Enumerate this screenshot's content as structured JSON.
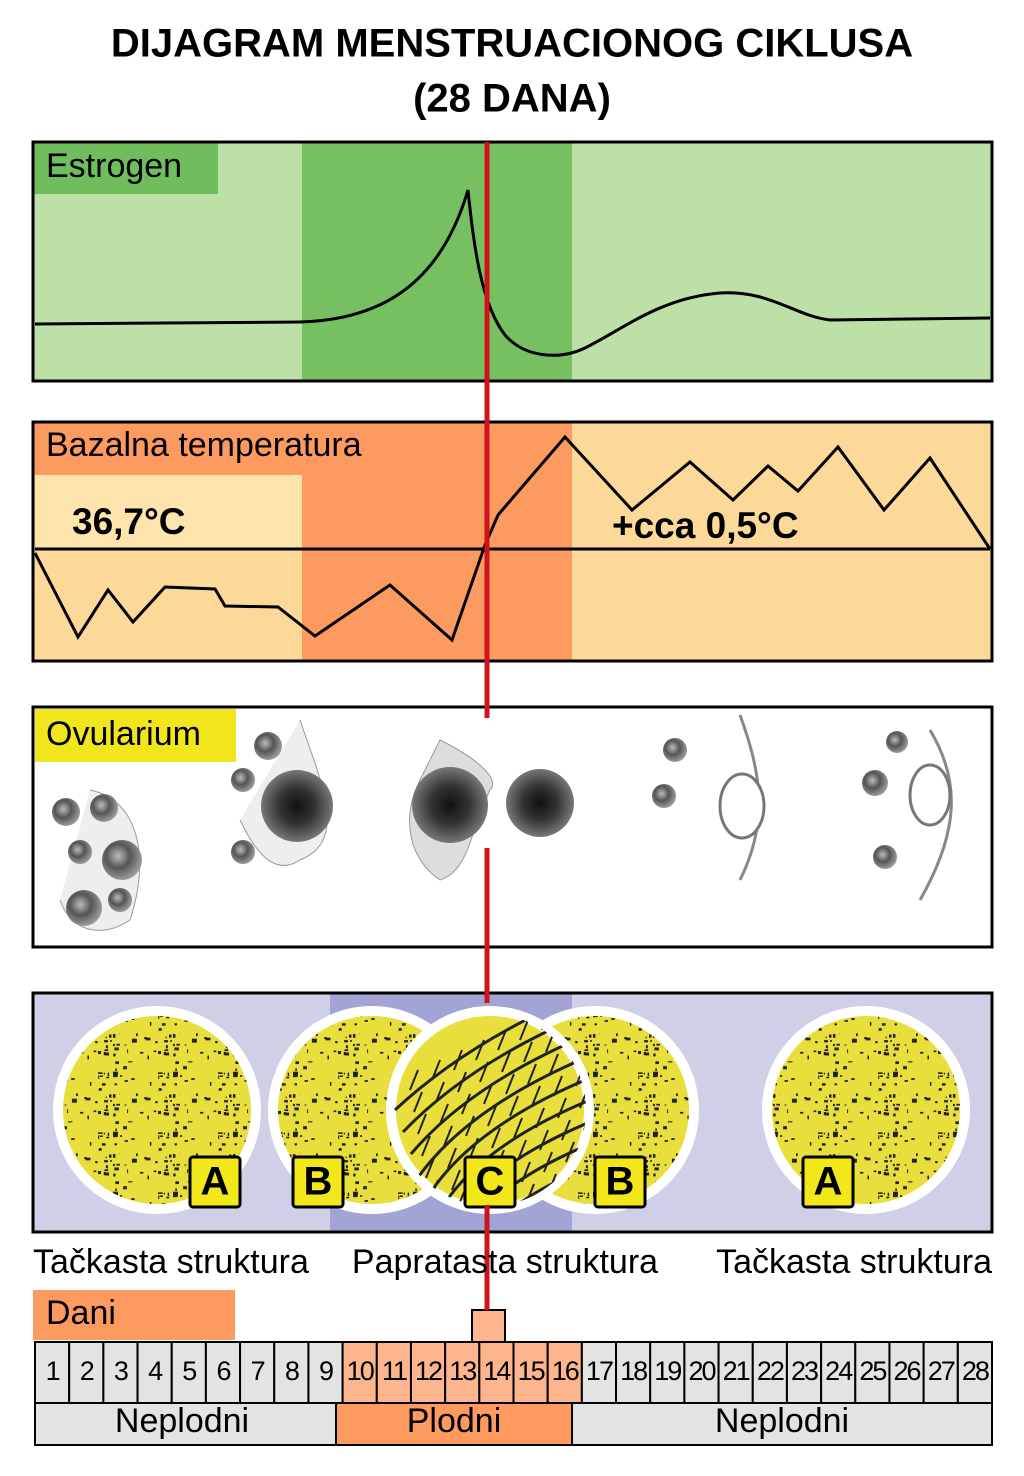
{
  "title": [
    "DIJAGRAM MENSTRUACIONOG CIKLUSA",
    "(28 DANA)"
  ],
  "panels": {
    "estrogen": {
      "label": "Estrogen"
    },
    "temperature": {
      "label": "Bazalna temperatura",
      "base": "36,7°C",
      "rise": "+cca 0,5°C"
    },
    "ovularium": {
      "label": "Ovularium"
    },
    "mucus": {
      "letters": [
        "A",
        "B",
        "C",
        "B",
        "A"
      ],
      "structures": [
        "Tačkasta struktura",
        "Papratasta struktura",
        "Tačkasta struktura"
      ]
    }
  },
  "days": {
    "label": "Dani",
    "numbers": [
      1,
      2,
      3,
      4,
      5,
      6,
      7,
      8,
      9,
      10,
      11,
      12,
      13,
      14,
      15,
      16,
      17,
      18,
      19,
      20,
      21,
      22,
      23,
      24,
      25,
      26,
      27,
      28
    ],
    "phases": [
      "Neplodni",
      "Plodni",
      "Neplodni"
    ]
  }
}
